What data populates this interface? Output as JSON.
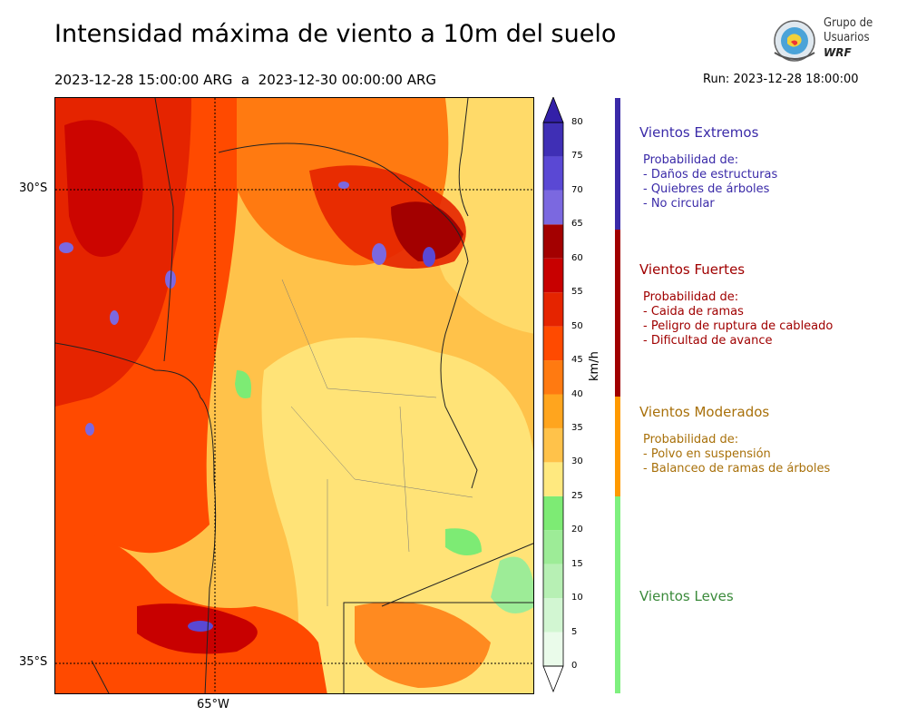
{
  "header": {
    "title": "Intensidad máxima de viento a 10m del suelo",
    "period": "2023-12-28 15:00:00 ARG  a  2023-12-30 00:00:00 ARG",
    "run": "Run: 2023-12-28 18:00:00"
  },
  "logo": {
    "line1": "Grupo de",
    "line2": "Usuarios",
    "line3": "WRF"
  },
  "map": {
    "lat_labels": [
      "30°S",
      "35°S"
    ],
    "lon_labels": [
      "65°W"
    ]
  },
  "colorbar": {
    "unit": "km/h",
    "ticks": [
      "0",
      "5",
      "10",
      "15",
      "20",
      "25",
      "30",
      "35",
      "40",
      "45",
      "50",
      "55",
      "60",
      "65",
      "70",
      "75",
      "80"
    ],
    "levels": [
      {
        "from": 0,
        "to": 5,
        "color": "#eafbea"
      },
      {
        "from": 5,
        "to": 10,
        "color": "#d2f6d2"
      },
      {
        "from": 10,
        "to": 15,
        "color": "#b7f0b4"
      },
      {
        "from": 15,
        "to": 20,
        "color": "#9dec97"
      },
      {
        "from": 20,
        "to": 25,
        "color": "#7deb74"
      },
      {
        "from": 25,
        "to": 30,
        "color": "#ffe97f"
      },
      {
        "from": 30,
        "to": 35,
        "color": "#ffc24a"
      },
      {
        "from": 35,
        "to": 40,
        "color": "#ffa51e"
      },
      {
        "from": 40,
        "to": 45,
        "color": "#ff7a11"
      },
      {
        "from": 45,
        "to": 50,
        "color": "#ff4a00"
      },
      {
        "from": 50,
        "to": 55,
        "color": "#e52400"
      },
      {
        "from": 55,
        "to": 60,
        "color": "#c80000"
      },
      {
        "from": 60,
        "to": 65,
        "color": "#a30000"
      },
      {
        "from": 65,
        "to": 70,
        "color": "#7b68e0"
      },
      {
        "from": 70,
        "to": 75,
        "color": "#5a48d4"
      },
      {
        "from": 75,
        "to": 80,
        "color": "#3f2fb5"
      },
      {
        "from": 80,
        "to": 85,
        "color": "#3320a8"
      }
    ]
  },
  "categories": [
    {
      "name": "Vientos Extremos",
      "color": "#3a2aa8",
      "desc_title": "Probabilidad de:",
      "items": [
        "- Daños de estructuras",
        "- Quiebres de árboles",
        "- No circular"
      ]
    },
    {
      "name": "Vientos Fuertes",
      "color": "#a00000",
      "desc_title": "Probabilidad de:",
      "items": [
        "- Caida de ramas",
        "- Peligro de ruptura de cableado",
        "- Dificultad de avance"
      ]
    },
    {
      "name": "Vientos Moderados",
      "color": "#a8700a",
      "desc_title": "Probabilidad de:",
      "items": [
        "- Polvo en suspensión",
        "- Balanceo de ramas de árboles"
      ]
    },
    {
      "name": "Vientos Leves",
      "color": "#3a8a3a",
      "desc_title": "",
      "items": []
    }
  ],
  "category_bar_colors": [
    "#3a2aa8",
    "#a00000",
    "#ff9a00",
    "#7ff07f"
  ]
}
